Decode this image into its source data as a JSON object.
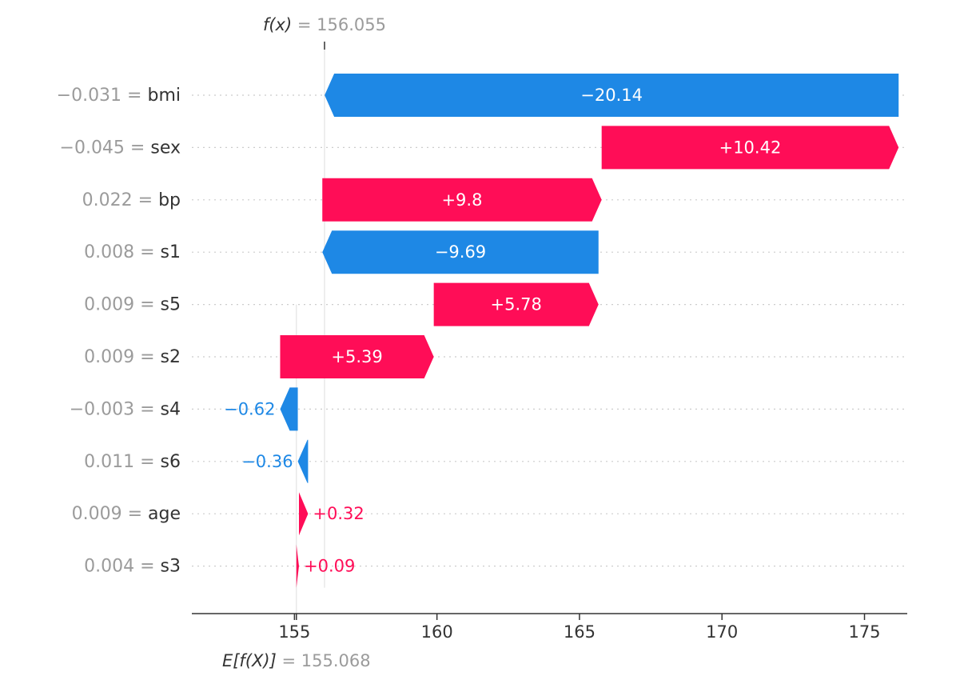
{
  "chart_data": {
    "type": "waterfall",
    "fx": {
      "label": "f(x)",
      "value": "156.055",
      "numeric": 156.055
    },
    "expected": {
      "label": "E[f(X)]",
      "value": "155.068",
      "numeric": 155.068
    },
    "features": [
      {
        "value": "−0.031",
        "name": "bmi",
        "contribution": -20.14,
        "label": "−20.14"
      },
      {
        "value": "−0.045",
        "name": "sex",
        "contribution": 10.42,
        "label": "+10.42"
      },
      {
        "value": "0.022",
        "name": "bp",
        "contribution": 9.8,
        "label": "+9.8"
      },
      {
        "value": "0.008",
        "name": "s1",
        "contribution": -9.69,
        "label": "−9.69"
      },
      {
        "value": "0.009",
        "name": "s5",
        "contribution": 5.78,
        "label": "+5.78"
      },
      {
        "value": "0.009",
        "name": "s2",
        "contribution": 5.39,
        "label": "+5.39"
      },
      {
        "value": "−0.003",
        "name": "s4",
        "contribution": -0.62,
        "label": "−0.62"
      },
      {
        "value": "0.011",
        "name": "s6",
        "contribution": -0.36,
        "label": "−0.36"
      },
      {
        "value": "0.009",
        "name": "age",
        "contribution": 0.32,
        "label": "+0.32"
      },
      {
        "value": "0.004",
        "name": "s3",
        "contribution": 0.09,
        "label": "+0.09"
      }
    ],
    "x_ticks": [
      155,
      160,
      165,
      170,
      175
    ],
    "xlim": [
      151.4,
      176.5
    ],
    "colors": {
      "positive": "#ff0d57",
      "negative": "#1e88e5",
      "positive_text": "#ff0d57",
      "negative_text": "#1e88e5",
      "base_label": "#9b9b9b",
      "axis": "#333333",
      "gridline": "#cccccc"
    }
  }
}
